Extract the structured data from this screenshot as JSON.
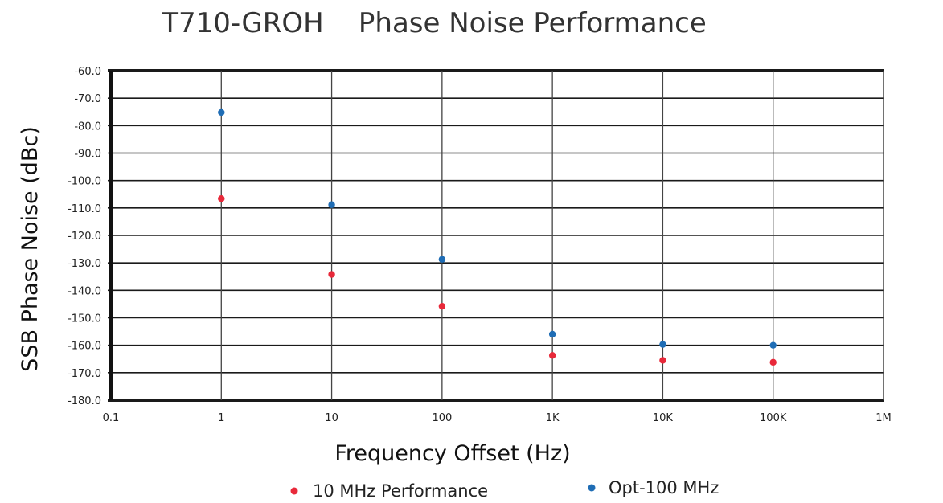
{
  "chart_data": {
    "type": "scatter",
    "title": "T710-GROH    Phase Noise Performance",
    "xlabel": "Frequency Offset (Hz)",
    "ylabel": "SSB Phase Noise (dBc)",
    "xscale": "log",
    "xlim": [
      0.1,
      1000000
    ],
    "ylim": [
      -180,
      -60
    ],
    "grid": true,
    "legend_position": "bottom",
    "x_ticks": [
      0.1,
      1,
      10,
      100,
      1000,
      10000,
      100000,
      1000000
    ],
    "x_tick_labels": [
      "0.1",
      "1",
      "10",
      "100",
      "1K",
      "10K",
      "100K",
      "1M"
    ],
    "y_ticks": [
      -60,
      -70,
      -80,
      -90,
      -100,
      -110,
      -120,
      -130,
      -140,
      -150,
      -160,
      -170,
      -180
    ],
    "y_tick_labels": [
      "-60.0",
      "-70.0",
      "-80.0",
      "-90.0",
      "-100.0",
      "-110.0",
      "-120.0",
      "-130.0",
      "-140.0",
      "-150.0",
      "-160.0",
      "-170.0",
      "-180.0"
    ],
    "series": [
      {
        "name": "10 MHz Performance",
        "color": "#e8293a",
        "x": [
          1,
          10,
          100,
          1000,
          10000,
          100000
        ],
        "y": [
          -106.6,
          -134.2,
          -145.8,
          -163.7,
          -165.5,
          -166.2
        ]
      },
      {
        "name": "Opt-100 MHz",
        "color": "#1f6db5",
        "x": [
          1,
          10,
          100,
          1000,
          10000,
          100000
        ],
        "y": [
          -75.2,
          -108.8,
          -128.7,
          -156.0,
          -159.7,
          -160.0
        ]
      }
    ]
  }
}
